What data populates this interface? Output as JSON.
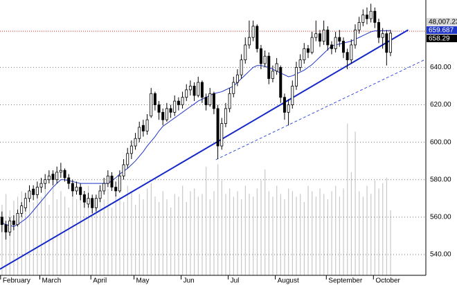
{
  "chart_data": {
    "type": "candlestick",
    "categories": [
      "February",
      null,
      null,
      null,
      null,
      null,
      null,
      null,
      null,
      null,
      "March",
      null,
      null,
      null,
      null,
      null,
      null,
      null,
      null,
      null,
      null,
      null,
      null,
      "April",
      null,
      null,
      null,
      null,
      null,
      null,
      null,
      null,
      null,
      null,
      "May",
      null,
      null,
      null,
      null,
      null,
      null,
      null,
      null,
      null,
      null,
      null,
      "Jun",
      null,
      null,
      null,
      null,
      null,
      null,
      null,
      null,
      null,
      null,
      null,
      "Jul",
      null,
      null,
      null,
      null,
      null,
      null,
      null,
      null,
      null,
      null,
      null,
      "August",
      null,
      null,
      null,
      null,
      null,
      null,
      null,
      null,
      null,
      null,
      null,
      null,
      "September",
      null,
      null,
      null,
      null,
      null,
      null,
      null,
      null,
      null,
      null,
      null,
      "October",
      null,
      null,
      null,
      null
    ],
    "open": [
      560,
      556,
      552,
      558,
      556,
      562,
      565,
      570,
      575,
      572,
      576,
      578,
      580,
      583,
      580,
      584,
      585,
      581,
      578,
      574,
      576,
      572,
      567,
      570,
      565,
      570,
      574,
      578,
      582,
      576,
      574,
      582,
      588,
      594,
      598,
      602,
      609,
      606,
      614,
      626,
      620,
      616,
      612,
      618,
      616,
      622,
      620,
      624,
      628,
      630,
      625,
      632,
      624,
      620,
      626,
      618,
      598,
      610,
      618,
      626,
      632,
      636,
      644,
      652,
      656,
      662,
      650,
      642,
      646,
      634,
      638,
      640,
      624,
      616,
      620,
      630,
      640,
      644,
      650,
      648,
      656,
      658,
      654,
      660,
      652,
      650,
      656,
      654,
      648,
      644,
      652,
      660,
      664,
      668,
      666,
      670,
      664,
      656,
      658,
      648
    ],
    "high": [
      563,
      558,
      560,
      561,
      564,
      568,
      573,
      577,
      577,
      579,
      581,
      583,
      585,
      585,
      587,
      589,
      586,
      583,
      580,
      579,
      578,
      574,
      573,
      572,
      572,
      577,
      581,
      585,
      584,
      579,
      585,
      591,
      597,
      601,
      605,
      611,
      612,
      615,
      629,
      627,
      622,
      618,
      621,
      620,
      625,
      624,
      627,
      631,
      633,
      632,
      635,
      633,
      626,
      629,
      627,
      620,
      613,
      621,
      629,
      635,
      639,
      647,
      656,
      665,
      665,
      663,
      652,
      649,
      648,
      641,
      645,
      641,
      626,
      623,
      633,
      643,
      647,
      653,
      652,
      659,
      665,
      660,
      665,
      662,
      654,
      659,
      660,
      656,
      650,
      655,
      663,
      667,
      671,
      672,
      674,
      672,
      666,
      661,
      660,
      660
    ],
    "low": [
      552,
      548,
      550,
      553,
      555,
      560,
      563,
      568,
      569,
      570,
      573,
      575,
      578,
      577,
      578,
      581,
      579,
      575,
      571,
      572,
      569,
      565,
      565,
      562,
      563,
      568,
      572,
      576,
      574,
      571,
      573,
      580,
      586,
      591,
      596,
      600,
      603,
      604,
      613,
      617,
      612,
      609,
      611,
      613,
      614,
      617,
      618,
      622,
      625,
      622,
      624,
      621,
      617,
      619,
      615,
      591,
      596,
      608,
      616,
      624,
      630,
      634,
      642,
      650,
      654,
      648,
      639,
      640,
      631,
      632,
      636,
      621,
      612,
      609,
      618,
      628,
      638,
      642,
      645,
      647,
      654,
      651,
      652,
      649,
      647,
      648,
      651,
      645,
      639,
      642,
      650,
      658,
      662,
      663,
      664,
      661,
      653,
      650,
      641,
      646
    ],
    "close": [
      556,
      552,
      558,
      556,
      562,
      566,
      570,
      574,
      572,
      576,
      578,
      580,
      582,
      580,
      584,
      585,
      581,
      578,
      574,
      576,
      572,
      568,
      570,
      565,
      570,
      574,
      578,
      582,
      576,
      574,
      582,
      588,
      594,
      598,
      602,
      608,
      606,
      612,
      626,
      620,
      616,
      612,
      618,
      616,
      622,
      620,
      624,
      628,
      630,
      625,
      632,
      624,
      620,
      626,
      618,
      598,
      610,
      618,
      626,
      632,
      636,
      644,
      652,
      656,
      662,
      650,
      642,
      646,
      634,
      638,
      642,
      624,
      616,
      620,
      630,
      640,
      644,
      650,
      648,
      656,
      658,
      654,
      660,
      652,
      650,
      656,
      654,
      648,
      644,
      652,
      660,
      664,
      668,
      666,
      670,
      664,
      656,
      658,
      648,
      658.29
    ],
    "volume": [
      52000,
      60000,
      48000,
      55000,
      58000,
      62000,
      50000,
      66000,
      54000,
      60000,
      58000,
      64000,
      52000,
      70000,
      56000,
      62000,
      58000,
      50000,
      64000,
      56000,
      60000,
      54000,
      66000,
      58000,
      52000,
      62000,
      56000,
      64000,
      50000,
      60000,
      58000,
      54000,
      66000,
      62000,
      52000,
      60000,
      56000,
      64000,
      68000,
      58000,
      54000,
      62000,
      56000,
      50000,
      60000,
      58000,
      66000,
      54000,
      62000,
      64000,
      58000,
      60000,
      80000,
      56000,
      62000,
      82000,
      70000,
      60000,
      64000,
      58000,
      62000,
      56000,
      66000,
      60000,
      58000,
      64000,
      70000,
      78000,
      62000,
      58000,
      66000,
      60000,
      56000,
      64000,
      62000,
      58000,
      60000,
      54000,
      66000,
      62000,
      58000,
      64000,
      60000,
      56000,
      62000,
      66000,
      58000,
      64000,
      112000,
      76000,
      106000,
      62000,
      58000,
      66000,
      60000,
      70000,
      64000,
      68000,
      72000,
      48007.23
    ],
    "ma": [
      557,
      556,
      555.5,
      555,
      556,
      557.5,
      559,
      561,
      563.5,
      566,
      568.5,
      571,
      573.5,
      576,
      578,
      580,
      580,
      579.5,
      579,
      578.5,
      578,
      578,
      578,
      578,
      578,
      578,
      578,
      578,
      579.5,
      581,
      583,
      584.5,
      586,
      588,
      590,
      592.5,
      595,
      598,
      600.5,
      603,
      606,
      608.5,
      610,
      611.5,
      613,
      614.5,
      616,
      617.5,
      619,
      620.5,
      622,
      623,
      624,
      625,
      626,
      626.5,
      627,
      628,
      629,
      630,
      632,
      634,
      636,
      638,
      640,
      641,
      641,
      640.5,
      640,
      639,
      638,
      637,
      636,
      635,
      635.5,
      636.5,
      637.5,
      638.5,
      640,
      641.5,
      643.5,
      645.5,
      647.5,
      649.5,
      651.5,
      652,
      652.5,
      653,
      653.5,
      654,
      655,
      656,
      657,
      658,
      659,
      659.5,
      659.5,
      659.6,
      659.6,
      659.687
    ],
    "ma_color": "#1f35c8",
    "volume_color": "#c8c8c8",
    "ma_value_label": "659.687",
    "close_value_label": "658.29",
    "volume_value_label": "48,007.23",
    "resistance": 659.3,
    "trendlines": [
      {
        "x": [
          -0.5,
          103.5
        ],
        "y": [
          532.2,
          660
        ],
        "color": "#1428c8",
        "style": "solid"
      },
      {
        "x": [
          54.5,
          108
        ],
        "y": [
          590.7,
          644.4
        ],
        "color": "#3a4ee0",
        "style": "dashed"
      }
    ],
    "xlim": [
      -0.5,
      108
    ],
    "ylim": [
      528.9,
      676
    ],
    "vlim": [
      0,
      203000
    ],
    "yticks": [
      {
        "value": 540,
        "label": "540.00"
      },
      {
        "value": 560,
        "label": "560.00"
      },
      {
        "value": 580,
        "label": "580.00"
      },
      {
        "value": 600,
        "label": "600.00"
      },
      {
        "value": 620,
        "label": "620.00"
      },
      {
        "value": 640,
        "label": "640.00"
      }
    ],
    "grid": true
  }
}
